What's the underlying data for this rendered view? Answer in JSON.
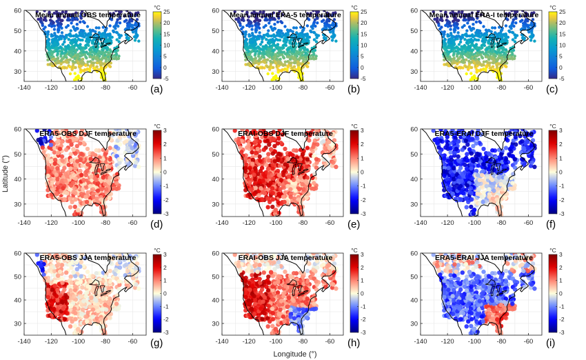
{
  "figure": {
    "ylabel": "Latitude (°)",
    "xlabel": "Longitude  (°)"
  },
  "chart_data": [
    {
      "id": "a",
      "type": "scatter",
      "title": "Mean annual OBS temperature",
      "panel_label": "(a)",
      "colormap": "parula",
      "clim": [
        -5,
        25
      ],
      "cbar_ticks": [
        "25",
        "20",
        "15",
        "10",
        "5",
        "0",
        "-5"
      ],
      "cbar_unit": "°C",
      "xlim": [
        -140,
        -50
      ],
      "ylim": [
        25,
        60
      ],
      "xticks": [
        "-140",
        "-120",
        "-100",
        "-80",
        "-60"
      ],
      "yticks": [
        "60",
        "50",
        "40",
        "30"
      ],
      "field": "climatology",
      "grid": true
    },
    {
      "id": "b",
      "type": "scatter",
      "title": "Mean annual ERA-5 temperature",
      "panel_label": "(b)",
      "colormap": "parula",
      "clim": [
        -5,
        25
      ],
      "cbar_ticks": [
        "25",
        "20",
        "15",
        "10",
        "5",
        "0",
        "-5"
      ],
      "cbar_unit": "°C",
      "xlim": [
        -140,
        -50
      ],
      "ylim": [
        25,
        60
      ],
      "xticks": [
        "-140",
        "-120",
        "-100",
        "-80",
        "-60"
      ],
      "yticks": [
        "60",
        "50",
        "40",
        "30"
      ],
      "field": "climatology",
      "grid": true
    },
    {
      "id": "c",
      "type": "scatter",
      "title": "Mean annual ERA-I temperature",
      "panel_label": "(c)",
      "colormap": "parula",
      "clim": [
        -5,
        25
      ],
      "cbar_ticks": [
        "25",
        "20",
        "15",
        "10",
        "5",
        "0",
        "-5"
      ],
      "cbar_unit": "°C",
      "xlim": [
        -140,
        -50
      ],
      "ylim": [
        25,
        60
      ],
      "xticks": [
        "-140",
        "-120",
        "-100",
        "-80",
        "-60"
      ],
      "yticks": [
        "60",
        "50",
        "40",
        "30"
      ],
      "field": "climatology",
      "grid": true
    },
    {
      "id": "d",
      "type": "scatter",
      "title": "ERA5-OBS DJF temperature",
      "panel_label": "(d)",
      "colormap": "blue-white-red",
      "clim": [
        -3,
        3
      ],
      "cbar_ticks": [
        "3",
        "2",
        "1",
        "0",
        "-1",
        "-2",
        "-3"
      ],
      "cbar_unit": "°C",
      "xlim": [
        -140,
        -50
      ],
      "ylim": [
        25,
        60
      ],
      "xticks": [
        "-140",
        "-120",
        "-100",
        "-80",
        "-60"
      ],
      "yticks": [
        "60",
        "50",
        "40",
        "30"
      ],
      "field": "era5_obs_djf",
      "grid": true
    },
    {
      "id": "e",
      "type": "scatter",
      "title": "ERAI-OBS DJF temperature",
      "panel_label": "(e)",
      "colormap": "blue-white-red",
      "clim": [
        -3,
        3
      ],
      "cbar_ticks": [
        "3",
        "2",
        "1",
        "0",
        "-1",
        "-2",
        "-3"
      ],
      "cbar_unit": "°C",
      "xlim": [
        -140,
        -50
      ],
      "ylim": [
        25,
        60
      ],
      "xticks": [
        "-140",
        "-120",
        "-100",
        "-80",
        "-60"
      ],
      "yticks": [
        "60",
        "50",
        "40",
        "30"
      ],
      "field": "erai_obs_djf",
      "grid": true
    },
    {
      "id": "f",
      "type": "scatter",
      "title": "ERA5-ERAI DJF temperature",
      "panel_label": "(f)",
      "colormap": "blue-white-red",
      "clim": [
        -3,
        3
      ],
      "cbar_ticks": [
        "3",
        "2",
        "1",
        "0",
        "-1",
        "-2",
        "-3"
      ],
      "cbar_unit": "°C",
      "xlim": [
        -140,
        -50
      ],
      "ylim": [
        25,
        60
      ],
      "xticks": [
        "-140",
        "-120",
        "-100",
        "-80",
        "-60"
      ],
      "yticks": [
        "60",
        "50",
        "40",
        "30"
      ],
      "field": "era5_erai_djf",
      "grid": true
    },
    {
      "id": "g",
      "type": "scatter",
      "title": "ERA5-OBS JJA temperature",
      "panel_label": "(g)",
      "colormap": "blue-white-red",
      "clim": [
        -3,
        3
      ],
      "cbar_ticks": [
        "3",
        "2",
        "1",
        "0",
        "-1",
        "-2",
        "-3"
      ],
      "cbar_unit": "°C",
      "xlim": [
        -140,
        -50
      ],
      "ylim": [
        25,
        60
      ],
      "xticks": [
        "-140",
        "-120",
        "-100",
        "-80",
        "-60"
      ],
      "yticks": [
        "60",
        "50",
        "40",
        "30"
      ],
      "field": "era5_obs_jja",
      "grid": true
    },
    {
      "id": "h",
      "type": "scatter",
      "title": "ERAI-OBS JJA temperature",
      "panel_label": "(h)",
      "colormap": "blue-white-red",
      "clim": [
        -3,
        3
      ],
      "cbar_ticks": [
        "3",
        "2",
        "1",
        "0",
        "-1",
        "-2",
        "-3"
      ],
      "cbar_unit": "°C",
      "xlim": [
        -140,
        -50
      ],
      "ylim": [
        25,
        60
      ],
      "xticks": [
        "-140",
        "-120",
        "-100",
        "-80",
        "-60"
      ],
      "yticks": [
        "60",
        "50",
        "40",
        "30"
      ],
      "field": "erai_obs_jja",
      "grid": true
    },
    {
      "id": "i",
      "type": "scatter",
      "title": "ERA5-ERAI JJA temperature",
      "panel_label": "(i)",
      "colormap": "blue-white-red",
      "clim": [
        -3,
        3
      ],
      "cbar_ticks": [
        "3",
        "2",
        "1",
        "0",
        "-1",
        "-2",
        "-3"
      ],
      "cbar_unit": "°C",
      "xlim": [
        -140,
        -50
      ],
      "ylim": [
        25,
        60
      ],
      "xticks": [
        "-140",
        "-120",
        "-100",
        "-80",
        "-60"
      ],
      "yticks": [
        "60",
        "50",
        "40",
        "30"
      ],
      "field": "era5_erai_jja",
      "grid": true
    }
  ],
  "coastline": [
    [
      -139,
      60
    ],
    [
      -136,
      58.5
    ],
    [
      -133,
      56
    ],
    [
      -130,
      54
    ],
    [
      -128,
      51
    ],
    [
      -124.5,
      48.5
    ],
    [
      -124,
      46
    ],
    [
      -124,
      43
    ],
    [
      -124.3,
      40.5
    ],
    [
      -122.5,
      37.8
    ],
    [
      -121,
      35.5
    ],
    [
      -118.5,
      34
    ],
    [
      -117.1,
      32.6
    ],
    [
      -115,
      31.5
    ],
    [
      -113,
      31.5
    ],
    [
      -112,
      29
    ],
    [
      -110,
      27
    ],
    [
      -109,
      25
    ],
    [
      -107,
      25
    ],
    [
      -100,
      25
    ],
    [
      -97.5,
      25.5
    ],
    [
      -97.3,
      27.5
    ],
    [
      -95,
      29.3
    ],
    [
      -93,
      29.7
    ],
    [
      -90,
      29.2
    ],
    [
      -89,
      30.3
    ],
    [
      -87,
      30.4
    ],
    [
      -84.5,
      29.9
    ],
    [
      -83,
      29
    ],
    [
      -82.5,
      27.5
    ],
    [
      -81.5,
      25.2
    ],
    [
      -80.2,
      25.8
    ],
    [
      -80,
      27
    ],
    [
      -80.5,
      29
    ],
    [
      -81.3,
      30.5
    ],
    [
      -81,
      32
    ],
    [
      -79,
      33.5
    ],
    [
      -76.5,
      34.8
    ],
    [
      -75.6,
      36
    ],
    [
      -76,
      37.3
    ],
    [
      -75,
      38.5
    ],
    [
      -74,
      40.5
    ],
    [
      -72,
      41.2
    ],
    [
      -70,
      41.6
    ],
    [
      -70.5,
      43
    ],
    [
      -68,
      44.3
    ],
    [
      -66,
      45
    ],
    [
      -64.5,
      45.4
    ],
    [
      -66,
      44
    ],
    [
      -65,
      43.5
    ],
    [
      -63.5,
      44.5
    ],
    [
      -61,
      45.5
    ],
    [
      -60,
      46
    ],
    [
      -61.5,
      47
    ],
    [
      -64.5,
      48.5
    ],
    [
      -66,
      49.2
    ],
    [
      -64.5,
      50.2
    ],
    [
      -60,
      50.3
    ],
    [
      -57,
      51.5
    ],
    [
      -55.5,
      52.5
    ],
    [
      -56,
      54
    ],
    [
      -58,
      55
    ],
    [
      -61,
      56.3
    ],
    [
      -62,
      58
    ],
    [
      -64,
      60
    ]
  ],
  "hudson_bay": [
    [
      -95,
      60
    ],
    [
      -94,
      58.8
    ],
    [
      -92.5,
      57
    ],
    [
      -88,
      56
    ],
    [
      -85,
      55.2
    ],
    [
      -82,
      53.2
    ],
    [
      -80,
      51.5
    ],
    [
      -79,
      52.5
    ],
    [
      -78.8,
      54.5
    ],
    [
      -77,
      55.8
    ],
    [
      -76.6,
      57.8
    ],
    [
      -78,
      59
    ],
    [
      -77.8,
      60
    ]
  ],
  "great_lakes": [
    [
      [
        -92,
        46.7
      ],
      [
        -90,
        47
      ],
      [
        -87.5,
        48.7
      ],
      [
        -85,
        48
      ],
      [
        -84.5,
        46.5
      ],
      [
        -86.5,
        46.4
      ],
      [
        -89,
        46.5
      ],
      [
        -92,
        46.7
      ]
    ],
    [
      [
        -87.5,
        41.7
      ],
      [
        -87.8,
        43.5
      ],
      [
        -86.8,
        45.6
      ],
      [
        -85,
        45.9
      ],
      [
        -86.4,
        43.5
      ],
      [
        -86.3,
        42
      ],
      [
        -87.5,
        41.7
      ]
    ],
    [
      [
        -84,
        46
      ],
      [
        -83.5,
        45.3
      ],
      [
        -82.5,
        43.2
      ],
      [
        -81.7,
        43.5
      ],
      [
        -81.5,
        45
      ],
      [
        -80.5,
        46
      ],
      [
        -82,
        46.2
      ],
      [
        -84,
        46
      ]
    ],
    [
      [
        -83.4,
        41.7
      ],
      [
        -81,
        42.3
      ],
      [
        -79,
        42.8
      ],
      [
        -80.5,
        42.9
      ],
      [
        -83,
        42.4
      ],
      [
        -83.4,
        41.7
      ]
    ],
    [
      [
        -79.8,
        43.3
      ],
      [
        -77.5,
        43.4
      ],
      [
        -76.2,
        43.9
      ],
      [
        -77.3,
        44
      ],
      [
        -79,
        43.7
      ],
      [
        -79.8,
        43.3
      ]
    ]
  ]
}
